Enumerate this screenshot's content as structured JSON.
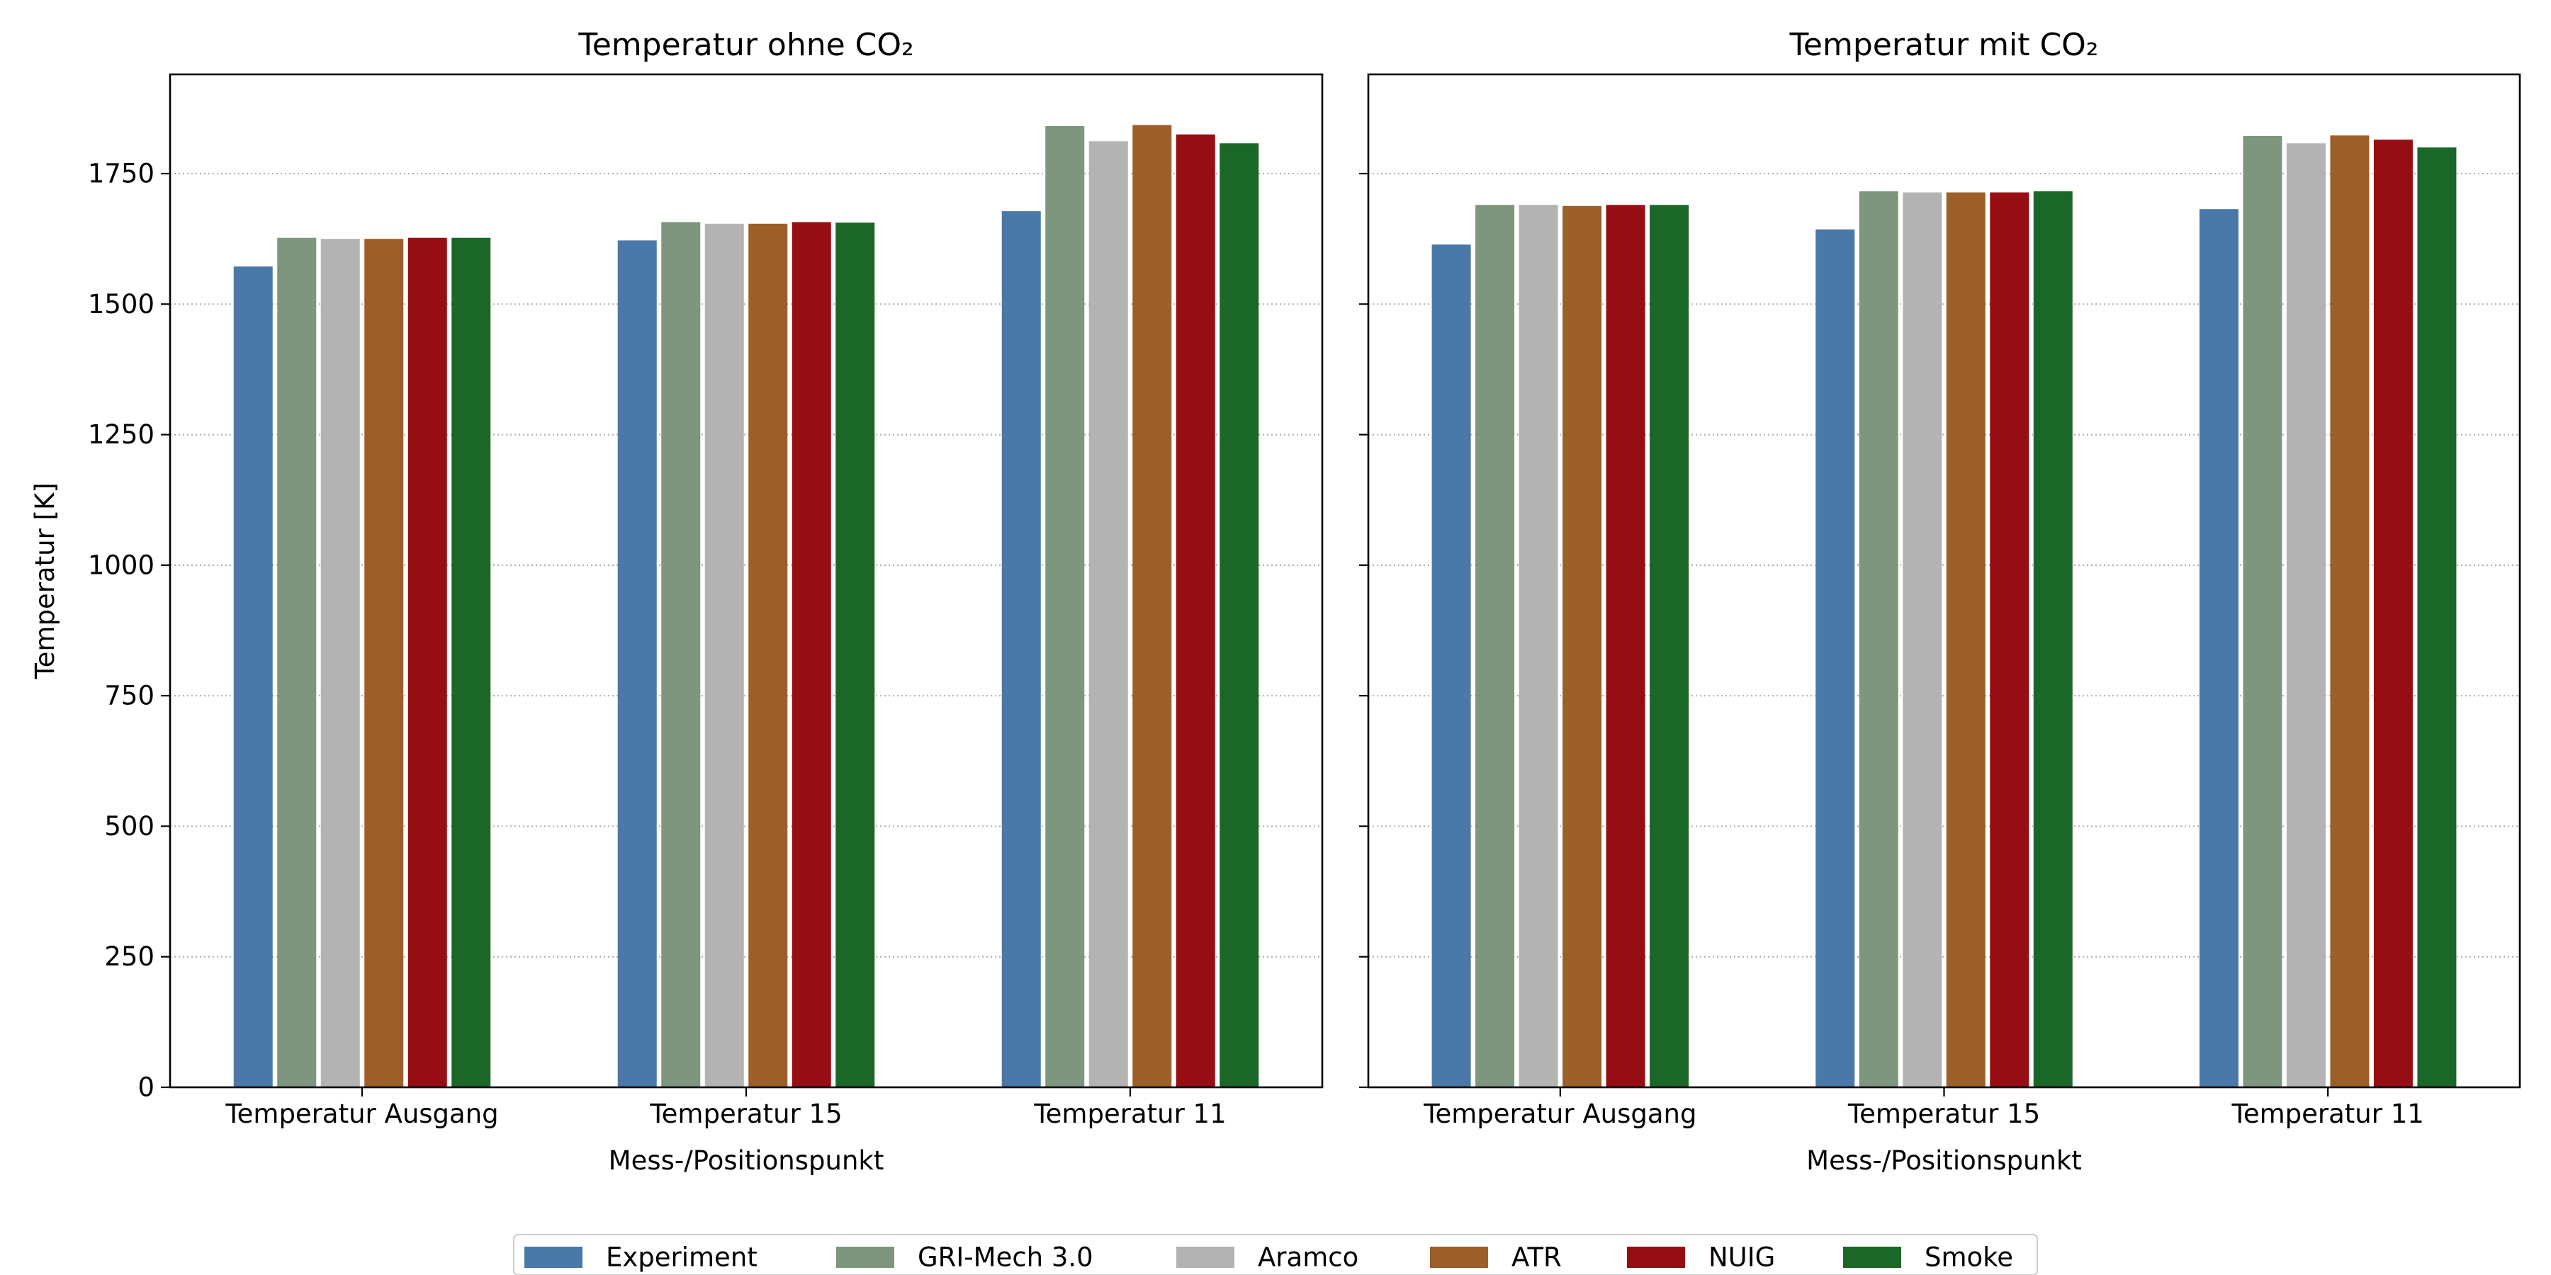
{
  "chart_data": [
    {
      "type": "bar",
      "title": "Temperatur ohne CO₂",
      "xlabel": "Mess-/Positionspunkt",
      "ylabel": "Temperatur [K]",
      "ylim": [
        0,
        1940
      ],
      "yticks": [
        0,
        250,
        500,
        750,
        1000,
        1250,
        1500,
        1750
      ],
      "grid": "y, dotted",
      "categories": [
        "Temperatur Ausgang",
        "Temperatur 15",
        "Temperatur 11"
      ],
      "series": [
        {
          "name": "Experiment",
          "values": [
            1572,
            1622,
            1678
          ]
        },
        {
          "name": "GRI-Mech 3.0",
          "values": [
            1627,
            1657,
            1841
          ]
        },
        {
          "name": "Aramco",
          "values": [
            1625,
            1654,
            1812
          ]
        },
        {
          "name": "ATR",
          "values": [
            1625,
            1654,
            1843
          ]
        },
        {
          "name": "NUIG",
          "values": [
            1627,
            1657,
            1825
          ]
        },
        {
          "name": "Smoke",
          "values": [
            1627,
            1656,
            1808
          ]
        }
      ]
    },
    {
      "type": "bar",
      "title": "Temperatur mit CO₂",
      "xlabel": "Mess-/Positionspunkt",
      "ylabel": "",
      "ylim": [
        0,
        1940
      ],
      "yticks": [
        0,
        250,
        500,
        750,
        1000,
        1250,
        1500,
        1750
      ],
      "grid": "y, dotted",
      "categories": [
        "Temperatur Ausgang",
        "Temperatur 15",
        "Temperatur 11"
      ],
      "series": [
        {
          "name": "Experiment",
          "values": [
            1614,
            1643,
            1682
          ]
        },
        {
          "name": "GRI-Mech 3.0",
          "values": [
            1690,
            1716,
            1822
          ]
        },
        {
          "name": "Aramco",
          "values": [
            1690,
            1714,
            1808
          ]
        },
        {
          "name": "ATR",
          "values": [
            1688,
            1714,
            1823
          ]
        },
        {
          "name": "NUIG",
          "values": [
            1690,
            1714,
            1815
          ]
        },
        {
          "name": "Smoke",
          "values": [
            1690,
            1716,
            1800
          ]
        }
      ]
    }
  ],
  "legend": {
    "placement": "bottom-center",
    "entries": [
      {
        "label": "Experiment",
        "color": "#4a78a8"
      },
      {
        "label": "GRI-Mech 3.0",
        "color": "#7f967e"
      },
      {
        "label": "Aramco",
        "color": "#b3b3b3"
      },
      {
        "label": "ATR",
        "color": "#9d5f2a"
      },
      {
        "label": "NUIG",
        "color": "#960e13"
      },
      {
        "label": "Smoke",
        "color": "#1b6728"
      }
    ]
  }
}
